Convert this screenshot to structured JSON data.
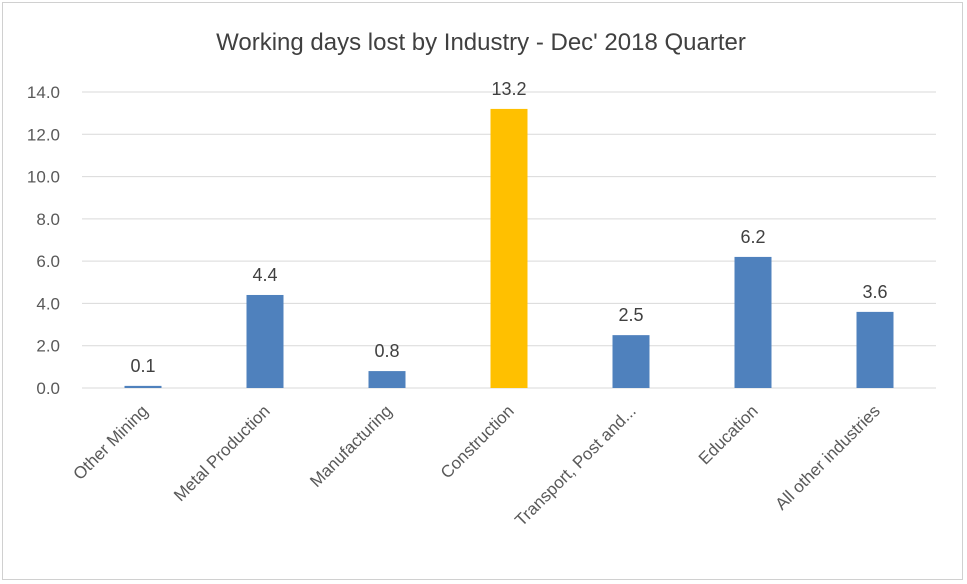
{
  "chart_data": {
    "type": "bar",
    "title": "Working  days lost by Industry - Dec' 2018 Quarter",
    "xlabel": "",
    "ylabel": "",
    "categories": [
      "Other Mining",
      "Metal Production",
      "Manufacturing",
      "Construction",
      "Transport, Post and...",
      "Education",
      "All other industries"
    ],
    "values": [
      0.1,
      4.4,
      0.8,
      13.2,
      2.5,
      6.2,
      3.6
    ],
    "data_labels": [
      "0.1",
      "4.4",
      "0.8",
      "13.2",
      "2.5",
      "6.2",
      "3.6"
    ],
    "ylim": [
      0,
      14
    ],
    "yticks": [
      "0.0",
      "2.0",
      "4.0",
      "6.0",
      "8.0",
      "10.0",
      "12.0",
      "14.0"
    ],
    "grid": true,
    "legend": "none",
    "colors": {
      "default_bar": "#4F81BD",
      "highlight_bar": "#FFC000",
      "gridline": "#D9D9D9"
    },
    "highlight_category": "Construction"
  }
}
